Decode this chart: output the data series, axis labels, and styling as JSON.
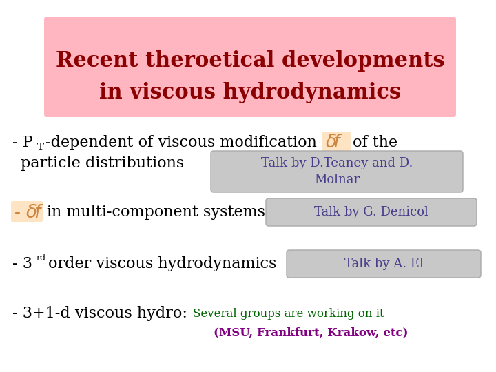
{
  "bg_color": "#ffffff",
  "title_bg": "#ffb6c1",
  "title_line1": "Recent theroetical developments",
  "title_line2": "in viscous hydrodynamics",
  "title_color": "#8b0000",
  "title_fontsize": 22,
  "bullet1_talk": "Talk by D.Teaney and D.\nMolnar",
  "bullet2_talk": "Talk by G. Denicol",
  "bullet3_talk": "Talk by A. El",
  "bullet4_green1": "Several groups are working on it",
  "bullet4_purple": "(MSU, Frankfurt, Krakow, etc)",
  "body_color": "#000000",
  "talk_color": "#483d8b",
  "talk_bg": "#c8c8c8",
  "df_color": "#cd853f",
  "df_bg": "#ffe4c4",
  "green_color": "#006400",
  "purple_color": "#800080",
  "body_fontsize": 16,
  "talk_fontsize": 13,
  "small_fontsize": 12
}
